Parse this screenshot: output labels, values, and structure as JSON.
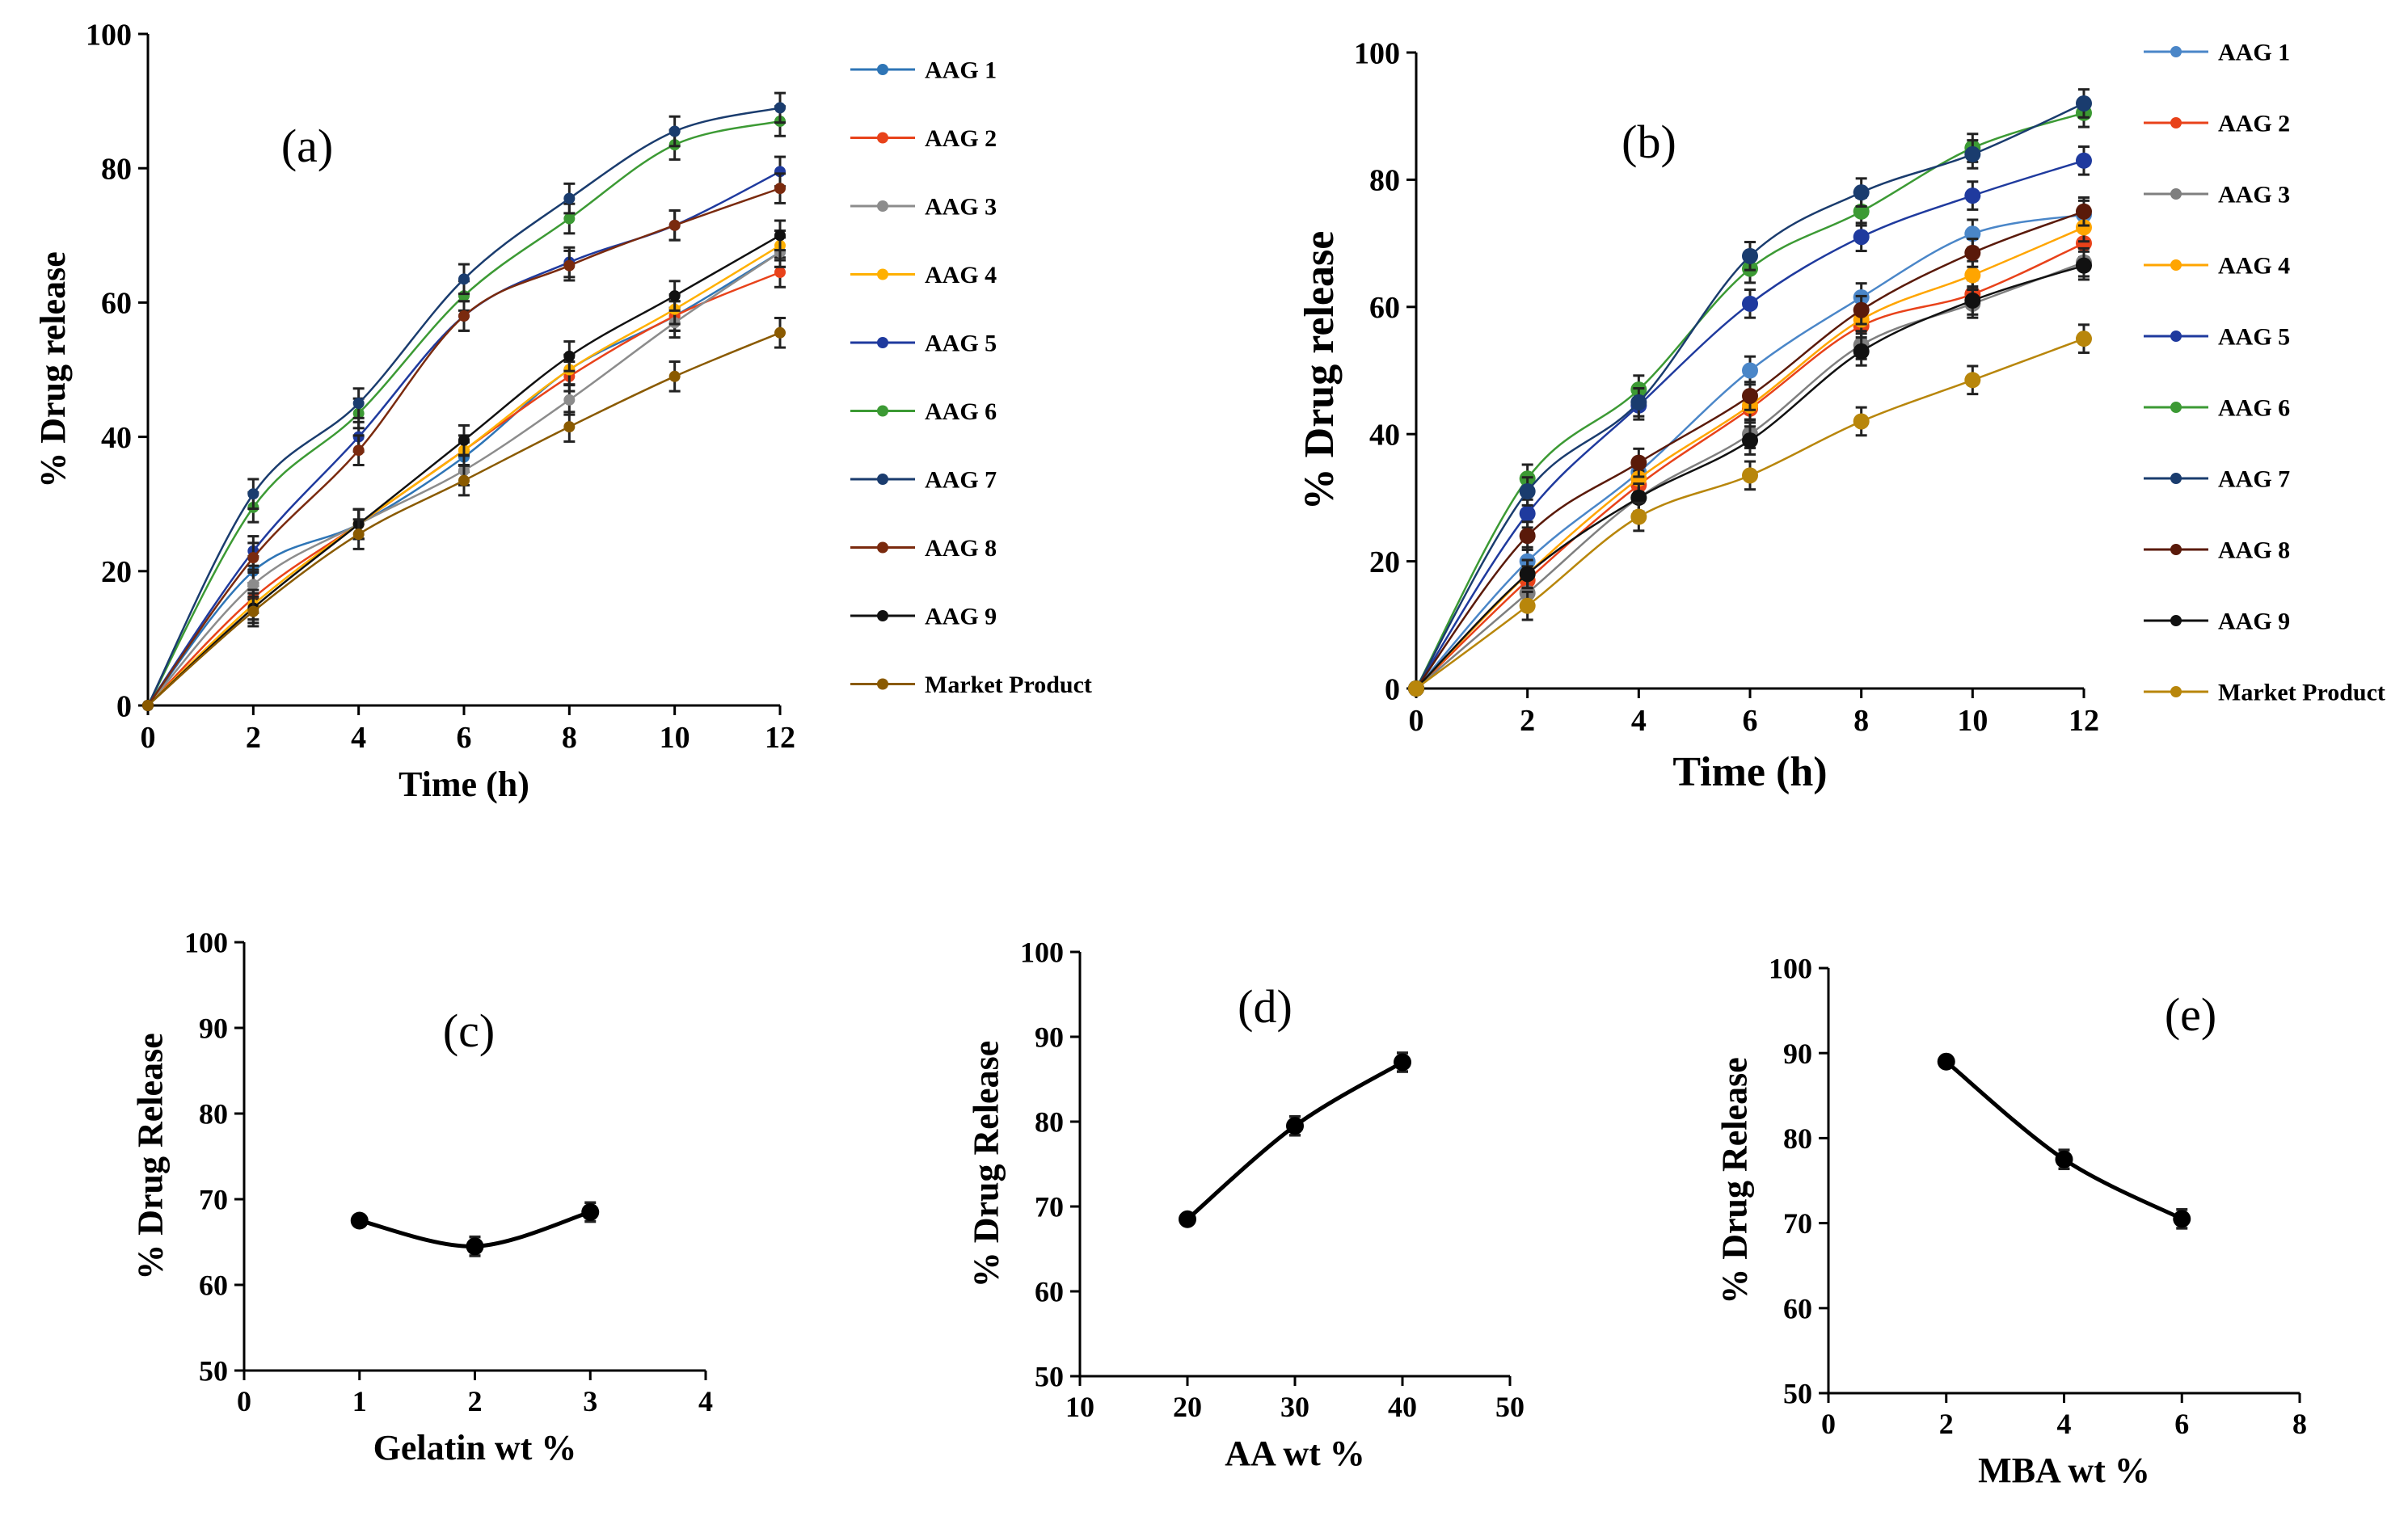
{
  "chart_data": [
    {
      "id": "a",
      "type": "line",
      "panel_label": "(a)",
      "xlabel": "Time (h)",
      "ylabel": "% Drug release",
      "xlim": [
        0,
        12
      ],
      "ylim": [
        0,
        100
      ],
      "x_ticks": [
        "0",
        "2",
        "4",
        "6",
        "8",
        "10",
        "12"
      ],
      "y_ticks": [
        "0",
        "20",
        "40",
        "60",
        "80",
        "100"
      ],
      "x": [
        0,
        2,
        4,
        6,
        8,
        10,
        12
      ],
      "legend_position": "right",
      "series": [
        {
          "name": "AAG 1",
          "color": "#2e75b6",
          "values": [
            0,
            20,
            27,
            37,
            50,
            58,
            67.5
          ]
        },
        {
          "name": "AAG 2",
          "color": "#e8421a",
          "values": [
            0,
            16,
            27,
            38,
            49,
            58,
            64.5
          ]
        },
        {
          "name": "AAG 3",
          "color": "#8c8c8c",
          "values": [
            0,
            18,
            27,
            35,
            45.5,
            57,
            67.5
          ]
        },
        {
          "name": "AAG 4",
          "color": "#ffb000",
          "values": [
            0,
            15,
            27,
            38,
            50,
            59,
            68.5
          ]
        },
        {
          "name": "AAG 5",
          "color": "#1f3a9e",
          "values": [
            0,
            23,
            40,
            58,
            66,
            71.5,
            79.5
          ]
        },
        {
          "name": "AAG 6",
          "color": "#3c9a34",
          "values": [
            0,
            29.5,
            43.5,
            61,
            72.5,
            83.5,
            87
          ]
        },
        {
          "name": "AAG 7",
          "color": "#1a3c6e",
          "values": [
            0,
            31.5,
            45,
            63.5,
            75.5,
            85.5,
            89
          ]
        },
        {
          "name": "AAG 8",
          "color": "#7a2a0e",
          "values": [
            0,
            22,
            38,
            58,
            65.5,
            71.5,
            77
          ]
        },
        {
          "name": "AAG 9",
          "color": "#111111",
          "values": [
            0,
            14.5,
            27,
            39.5,
            52,
            61,
            70
          ]
        },
        {
          "name": "Market Product",
          "color": "#8a5a00",
          "values": [
            0,
            14,
            25.5,
            33.5,
            41.5,
            49,
            55.5
          ]
        }
      ]
    },
    {
      "id": "b",
      "type": "line",
      "panel_label": "(b)",
      "xlabel": "Time (h)",
      "ylabel": "% Drug release",
      "xlim": [
        0,
        12
      ],
      "ylim": [
        0,
        100
      ],
      "x_ticks": [
        "0",
        "2",
        "4",
        "6",
        "8",
        "10",
        "12"
      ],
      "y_ticks": [
        "0",
        "20",
        "40",
        "60",
        "80",
        "100"
      ],
      "x": [
        0,
        2,
        4,
        6,
        8,
        10,
        12
      ],
      "legend_position": "right",
      "series": [
        {
          "name": "AAG 1",
          "color": "#4a86c8",
          "values": [
            0,
            20,
            34,
            50,
            61.5,
            71.5,
            74.5
          ]
        },
        {
          "name": "AAG 2",
          "color": "#e8421a",
          "values": [
            0,
            17,
            32,
            44,
            57,
            62,
            70
          ]
        },
        {
          "name": "AAG 3",
          "color": "#7f7f7f",
          "values": [
            0,
            15,
            30,
            40,
            54,
            60.5,
            67
          ]
        },
        {
          "name": "AAG 4",
          "color": "#ffa500",
          "values": [
            0,
            18,
            33,
            44.5,
            58,
            65,
            72.5
          ]
        },
        {
          "name": "AAG 5",
          "color": "#1f3a9e",
          "values": [
            0,
            27.5,
            44.5,
            60.5,
            71,
            77.5,
            83
          ]
        },
        {
          "name": "AAG 6",
          "color": "#3c9a34",
          "values": [
            0,
            33,
            47,
            66,
            75,
            85,
            90.5
          ]
        },
        {
          "name": "AAG 7",
          "color": "#1a3c6e",
          "values": [
            0,
            31,
            45,
            68,
            78,
            84,
            92
          ]
        },
        {
          "name": "AAG 8",
          "color": "#5a1a0a",
          "values": [
            0,
            24,
            35.5,
            46,
            59.5,
            68.5,
            75
          ]
        },
        {
          "name": "AAG 9",
          "color": "#111111",
          "values": [
            0,
            18,
            30,
            39,
            53,
            61,
            66.5
          ]
        },
        {
          "name": "Market Product",
          "color": "#b8860b",
          "values": [
            0,
            13,
            27,
            33.5,
            42,
            48.5,
            55
          ]
        }
      ]
    },
    {
      "id": "c",
      "type": "line",
      "panel_label": "(c)",
      "xlabel": "Gelatin wt %",
      "ylabel": "% Drug Release",
      "xlim": [
        0,
        4
      ],
      "ylim": [
        50,
        100
      ],
      "x_ticks": [
        "0",
        "1",
        "2",
        "3",
        "4"
      ],
      "y_ticks": [
        "50",
        "60",
        "70",
        "80",
        "90",
        "100"
      ],
      "x": [
        1,
        2,
        3
      ],
      "series": [
        {
          "name": "Gelatin",
          "color": "#000000",
          "values": [
            67.5,
            64.5,
            68.5
          ]
        }
      ]
    },
    {
      "id": "d",
      "type": "line",
      "panel_label": "(d)",
      "xlabel": "AA wt %",
      "ylabel": "% Drug Release",
      "xlim": [
        10,
        50
      ],
      "ylim": [
        50,
        100
      ],
      "x_ticks": [
        "10",
        "20",
        "30",
        "40",
        "50"
      ],
      "y_ticks": [
        "50",
        "60",
        "70",
        "80",
        "90",
        "100"
      ],
      "x": [
        20,
        30,
        40
      ],
      "series": [
        {
          "name": "AA",
          "color": "#000000",
          "values": [
            68.5,
            79.5,
            87
          ]
        }
      ]
    },
    {
      "id": "e",
      "type": "line",
      "panel_label": "(e)",
      "xlabel": "MBA wt %",
      "ylabel": "% Drug Release",
      "xlim": [
        0,
        8
      ],
      "ylim": [
        50,
        100
      ],
      "x_ticks": [
        "0",
        "2",
        "4",
        "6",
        "8"
      ],
      "y_ticks": [
        "50",
        "60",
        "70",
        "80",
        "90",
        "100"
      ],
      "x": [
        2,
        4,
        6
      ],
      "series": [
        {
          "name": "MBA",
          "color": "#000000",
          "values": [
            89,
            77.5,
            70.5
          ]
        }
      ]
    }
  ]
}
